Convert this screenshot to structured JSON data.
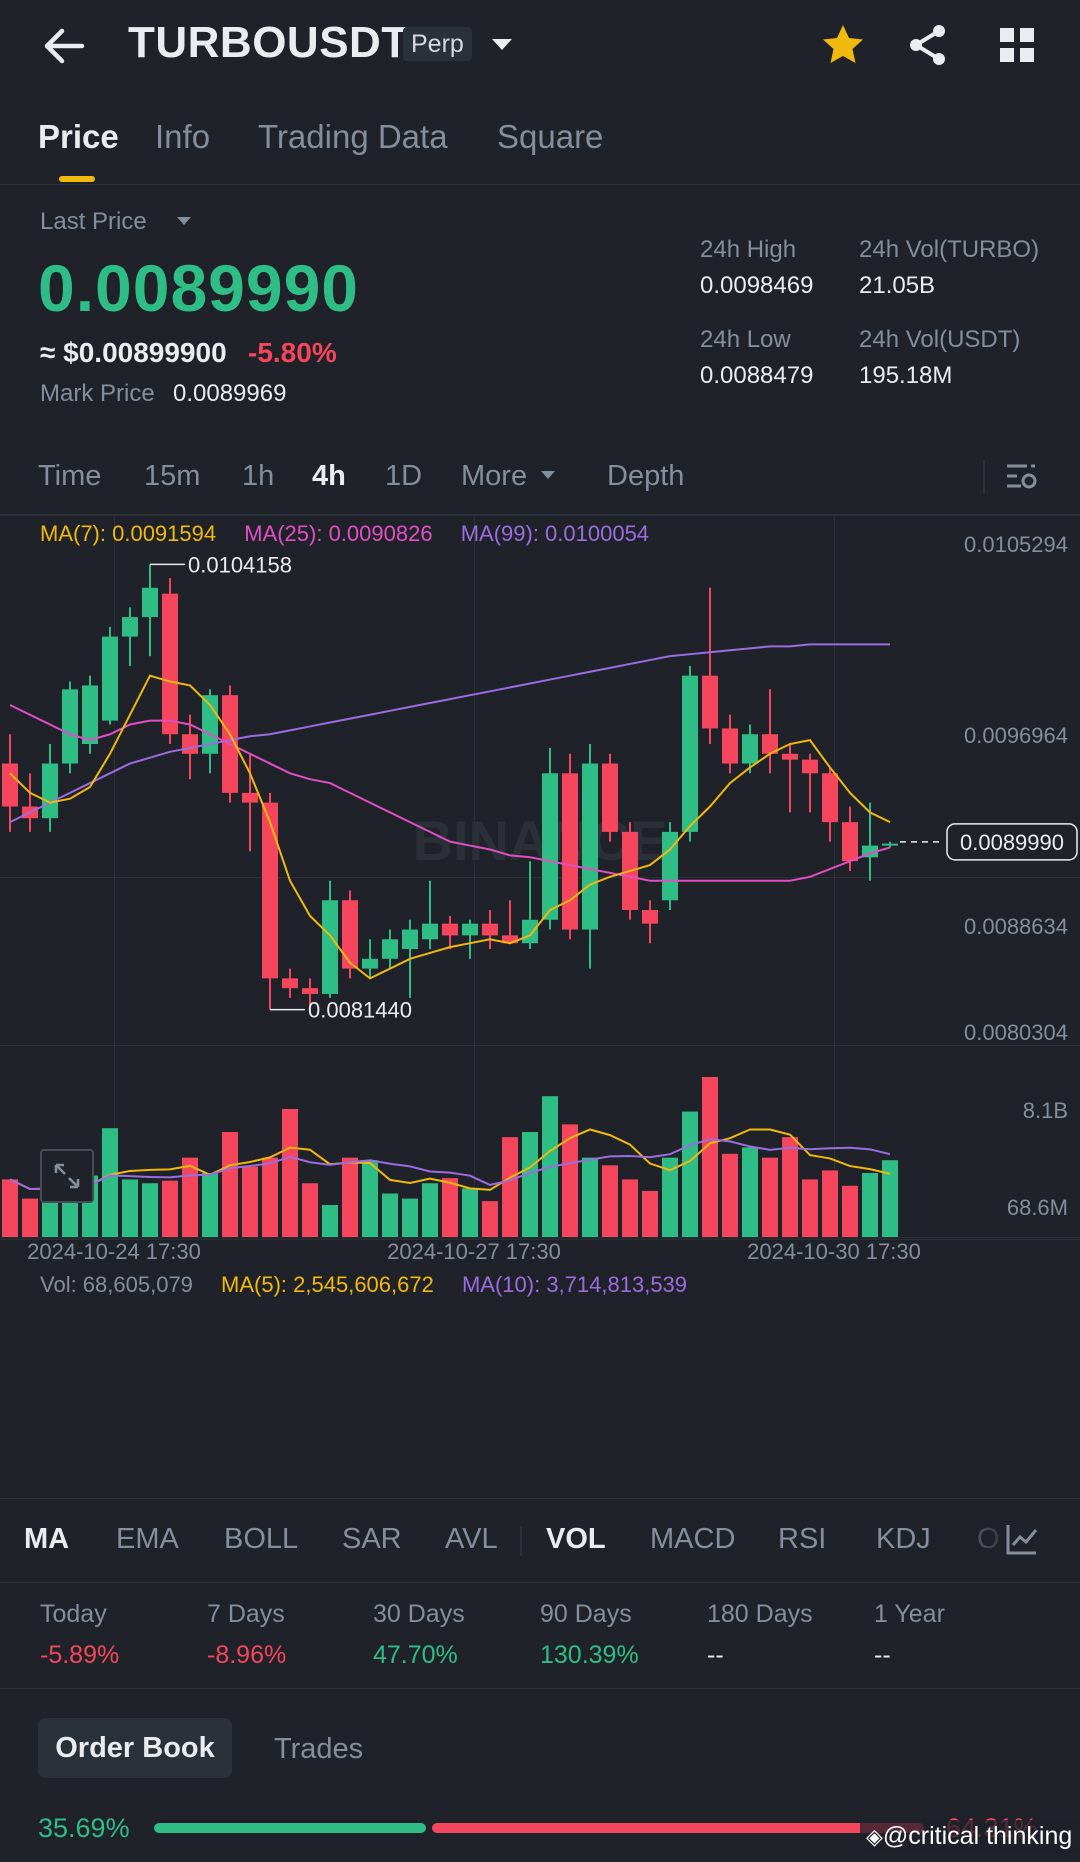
{
  "header": {
    "symbol": "TURBOUSDT",
    "contract_type": "Perp",
    "icons": [
      "back-arrow-icon",
      "caret-down-icon",
      "star-icon",
      "share-icon",
      "grid-icon"
    ]
  },
  "tabs": [
    {
      "label": "Price",
      "active": true
    },
    {
      "label": "Info"
    },
    {
      "label": "Trading Data"
    },
    {
      "label": "Square"
    }
  ],
  "price": {
    "last_price_label": "Last Price",
    "last_price": "0.0089990",
    "usd_value": "≈ $0.00899900",
    "change": "-5.80%",
    "mark_price_label": "Mark Price",
    "mark_price": "0.0089969"
  },
  "stats": {
    "high_label": "24h High",
    "high": "0.0098469",
    "low_label": "24h Low",
    "low": "0.0088479",
    "vol_base_label": "24h Vol(TURBO)",
    "vol_base": "21.05B",
    "vol_quote_label": "24h Vol(USDT)",
    "vol_quote": "195.18M"
  },
  "intervals": [
    "Time",
    "15m",
    "1h",
    "4h",
    "1D",
    "More",
    "Depth"
  ],
  "active_interval": "4h",
  "ma_legend": {
    "ma7": "MA(7): 0.0091594",
    "ma25": "MA(25): 0.0090826",
    "ma99": "MA(99): 0.0100054"
  },
  "vol_legend": {
    "vol": "Vol: 68,605,079",
    "ma5": "MA(5): 2,545,606,672",
    "ma10": "MA(10): 3,714,813,539"
  },
  "chart_data": {
    "type": "candlestick",
    "price_axis": {
      "min": 0.0080304,
      "max": 0.0105294,
      "ticks": [
        "0.0105294",
        "0.0096964",
        "0.0088634",
        "0.0080304"
      ]
    },
    "last_price_tag": "0.0089990",
    "high_marker": "0.0104158",
    "low_marker": "0.0081440",
    "volume_axis": {
      "ticks": [
        "8.1B",
        "68.6M"
      ]
    },
    "x_labels": [
      "2024-10-24 17:30",
      "2024-10-27 17:30",
      "2024-10-30 17:30"
    ],
    "candles": [
      {
        "o": 0.0094,
        "h": 0.00955,
        "l": 0.00905,
        "c": 0.00918
      },
      {
        "o": 0.00918,
        "h": 0.00935,
        "l": 0.00905,
        "c": 0.00912
      },
      {
        "o": 0.00912,
        "h": 0.0095,
        "l": 0.00905,
        "c": 0.0094
      },
      {
        "o": 0.0094,
        "h": 0.00982,
        "l": 0.00935,
        "c": 0.00978
      },
      {
        "o": 0.0095,
        "h": 0.00985,
        "l": 0.00945,
        "c": 0.0098
      },
      {
        "o": 0.00962,
        "h": 0.0101,
        "l": 0.0096,
        "c": 0.01005
      },
      {
        "o": 0.01005,
        "h": 0.0102,
        "l": 0.0099,
        "c": 0.01015
      },
      {
        "o": 0.01015,
        "h": 0.01042,
        "l": 0.00995,
        "c": 0.0103
      },
      {
        "o": 0.01027,
        "h": 0.01035,
        "l": 0.0095,
        "c": 0.00955
      },
      {
        "o": 0.00955,
        "h": 0.00965,
        "l": 0.00932,
        "c": 0.00945
      },
      {
        "o": 0.00945,
        "h": 0.00978,
        "l": 0.00935,
        "c": 0.00975
      },
      {
        "o": 0.00975,
        "h": 0.0098,
        "l": 0.0092,
        "c": 0.00925
      },
      {
        "o": 0.00925,
        "h": 0.00945,
        "l": 0.00895,
        "c": 0.0092
      },
      {
        "o": 0.0092,
        "h": 0.00925,
        "l": 0.00814,
        "c": 0.0083
      },
      {
        "o": 0.0083,
        "h": 0.00835,
        "l": 0.0082,
        "c": 0.00825
      },
      {
        "o": 0.00825,
        "h": 0.0083,
        "l": 0.00815,
        "c": 0.00822
      },
      {
        "o": 0.00822,
        "h": 0.0088,
        "l": 0.0082,
        "c": 0.0087
      },
      {
        "o": 0.0087,
        "h": 0.00875,
        "l": 0.0083,
        "c": 0.00835
      },
      {
        "o": 0.00835,
        "h": 0.0085,
        "l": 0.0083,
        "c": 0.0084
      },
      {
        "o": 0.0084,
        "h": 0.00855,
        "l": 0.00835,
        "c": 0.0085
      },
      {
        "o": 0.00845,
        "h": 0.0086,
        "l": 0.0082,
        "c": 0.00855
      },
      {
        "o": 0.0085,
        "h": 0.0088,
        "l": 0.00845,
        "c": 0.00858
      },
      {
        "o": 0.00858,
        "h": 0.00862,
        "l": 0.00845,
        "c": 0.00852
      },
      {
        "o": 0.00852,
        "h": 0.0086,
        "l": 0.0084,
        "c": 0.00858
      },
      {
        "o": 0.00858,
        "h": 0.00865,
        "l": 0.00845,
        "c": 0.00852
      },
      {
        "o": 0.00852,
        "h": 0.0087,
        "l": 0.00848,
        "c": 0.00848
      },
      {
        "o": 0.00848,
        "h": 0.0089,
        "l": 0.00845,
        "c": 0.0086
      },
      {
        "o": 0.0086,
        "h": 0.00948,
        "l": 0.00855,
        "c": 0.00935
      },
      {
        "o": 0.00935,
        "h": 0.00945,
        "l": 0.0085,
        "c": 0.00855
      },
      {
        "o": 0.00855,
        "h": 0.0095,
        "l": 0.00835,
        "c": 0.0094
      },
      {
        "o": 0.0094,
        "h": 0.00945,
        "l": 0.009,
        "c": 0.00905
      },
      {
        "o": 0.00905,
        "h": 0.0091,
        "l": 0.0086,
        "c": 0.00865
      },
      {
        "o": 0.00865,
        "h": 0.0087,
        "l": 0.00848,
        "c": 0.00858
      },
      {
        "o": 0.0087,
        "h": 0.0091,
        "l": 0.00865,
        "c": 0.00905
      },
      {
        "o": 0.00905,
        "h": 0.0099,
        "l": 0.009,
        "c": 0.00985
      },
      {
        "o": 0.00985,
        "h": 0.0103,
        "l": 0.0095,
        "c": 0.00958
      },
      {
        "o": 0.00958,
        "h": 0.00965,
        "l": 0.00935,
        "c": 0.0094
      },
      {
        "o": 0.0094,
        "h": 0.0096,
        "l": 0.00935,
        "c": 0.00955
      },
      {
        "o": 0.00955,
        "h": 0.00978,
        "l": 0.00935,
        "c": 0.00945
      },
      {
        "o": 0.00945,
        "h": 0.0095,
        "l": 0.00915,
        "c": 0.00942
      },
      {
        "o": 0.00942,
        "h": 0.00945,
        "l": 0.00915,
        "c": 0.00935
      },
      {
        "o": 0.00935,
        "h": 0.00938,
        "l": 0.009,
        "c": 0.0091
      },
      {
        "o": 0.0091,
        "h": 0.00918,
        "l": 0.00885,
        "c": 0.0089
      },
      {
        "o": 0.00892,
        "h": 0.0092,
        "l": 0.0088,
        "c": 0.00898
      },
      {
        "o": 0.00898,
        "h": 0.009,
        "l": 0.00897,
        "c": 0.00899
      }
    ],
    "ma7": [
      0.00935,
      0.00925,
      0.0092,
      0.00922,
      0.00928,
      0.00945,
      0.00965,
      0.00985,
      0.00982,
      0.0098,
      0.0097,
      0.00955,
      0.00935,
      0.0091,
      0.0088,
      0.00862,
      0.00852,
      0.00838,
      0.0083,
      0.00835,
      0.0084,
      0.00843,
      0.00846,
      0.00848,
      0.0085,
      0.00848,
      0.00852,
      0.00865,
      0.0087,
      0.00878,
      0.00882,
      0.00885,
      0.00888,
      0.00896,
      0.00908,
      0.00918,
      0.0093,
      0.00938,
      0.00945,
      0.0095,
      0.00952,
      0.00938,
      0.00925,
      0.00915,
      0.0091
    ],
    "ma25": [
      0.0097,
      0.00965,
      0.0096,
      0.00955,
      0.00952,
      0.00955,
      0.0096,
      0.00962,
      0.00962,
      0.0096,
      0.00955,
      0.0095,
      0.00945,
      0.0094,
      0.00935,
      0.00932,
      0.0093,
      0.00925,
      0.0092,
      0.00915,
      0.0091,
      0.00905,
      0.009,
      0.00898,
      0.00896,
      0.00893,
      0.00892,
      0.0089,
      0.00888,
      0.00886,
      0.00884,
      0.00882,
      0.0088,
      0.0088,
      0.0088,
      0.0088,
      0.0088,
      0.0088,
      0.0088,
      0.0088,
      0.00882,
      0.00886,
      0.0089,
      0.00894,
      0.00897
    ],
    "ma99": [
      0.0091,
      0.00915,
      0.0092,
      0.00925,
      0.0093,
      0.00935,
      0.0094,
      0.00943,
      0.00946,
      0.00948,
      0.0095,
      0.00952,
      0.00954,
      0.00955,
      0.00957,
      0.00959,
      0.00961,
      0.00963,
      0.00965,
      0.00967,
      0.00969,
      0.00971,
      0.00973,
      0.00975,
      0.00977,
      0.00979,
      0.00981,
      0.00983,
      0.00985,
      0.00987,
      0.00989,
      0.00991,
      0.00993,
      0.00995,
      0.00996,
      0.00997,
      0.00998,
      0.00999,
      0.01,
      0.01,
      0.01001,
      0.01001,
      0.01001,
      0.01001,
      0.01001
    ],
    "volumes": [
      0.45,
      0.3,
      0.38,
      0.42,
      0.48,
      0.85,
      0.45,
      0.42,
      0.44,
      0.62,
      0.5,
      0.82,
      0.55,
      0.62,
      1.0,
      0.42,
      0.25,
      0.62,
      0.6,
      0.34,
      0.3,
      0.42,
      0.46,
      0.38,
      0.28,
      0.78,
      0.82,
      1.1,
      0.88,
      0.62,
      0.56,
      0.45,
      0.36,
      0.62,
      0.98,
      1.25,
      0.65,
      0.7,
      0.62,
      0.78,
      0.45,
      0.52,
      0.4,
      0.5,
      0.6
    ]
  },
  "indicators": {
    "main": [
      "MA",
      "EMA",
      "BOLL",
      "SAR",
      "AVL"
    ],
    "sub": [
      "VOL",
      "MACD",
      "RSI",
      "KDJ",
      "O"
    ],
    "active_main": "MA",
    "active_sub": "VOL"
  },
  "performance": [
    {
      "label": "Today",
      "value": "-5.89%",
      "dir": "down"
    },
    {
      "label": "7 Days",
      "value": "-8.96%",
      "dir": "down"
    },
    {
      "label": "30 Days",
      "value": "47.70%",
      "dir": "up"
    },
    {
      "label": "90 Days",
      "value": "130.39%",
      "dir": "up"
    },
    {
      "label": "180 Days",
      "value": "--",
      "dir": "none"
    },
    {
      "label": "1 Year",
      "value": "--",
      "dir": "none"
    }
  ],
  "orderbook": {
    "tabs": [
      "Order Book",
      "Trades"
    ],
    "buy_pct": "35.69%",
    "sell_pct": "64.31%",
    "buy_fraction": 0.3569
  },
  "watermark": "BINANCE",
  "overlay_caption": "@critical thinking",
  "colors": {
    "up": "#2ebd85",
    "down": "#f6465d",
    "ma7": "#f0b90b",
    "ma25": "#e24fc4",
    "ma99": "#9b6de0",
    "accent": "#f0b90b"
  }
}
